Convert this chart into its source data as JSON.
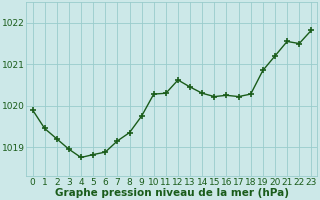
{
  "hours": [
    0,
    1,
    2,
    3,
    4,
    5,
    6,
    7,
    8,
    9,
    10,
    11,
    12,
    13,
    14,
    15,
    16,
    17,
    18,
    19,
    20,
    21,
    22,
    23
  ],
  "pressure": [
    1019.9,
    1019.45,
    1019.2,
    1018.95,
    1018.75,
    1018.82,
    1018.88,
    1019.15,
    1019.35,
    1019.75,
    1020.28,
    1020.3,
    1020.62,
    1020.45,
    1020.3,
    1020.22,
    1020.25,
    1020.22,
    1020.28,
    1020.85,
    1021.2,
    1021.55,
    1021.5,
    1021.82
  ],
  "line_color": "#1a5c1a",
  "marker": "+",
  "marker_size": 4,
  "marker_lw": 1.2,
  "line_width": 1.0,
  "background_color": "#cce8e8",
  "grid_color": "#99cccc",
  "ylabel_ticks": [
    1019,
    1020,
    1021,
    1022
  ],
  "xlabel": "Graphe pression niveau de la mer (hPa)",
  "ylim_min": 1018.3,
  "ylim_max": 1022.5,
  "xlim_min": -0.5,
  "xlim_max": 23.5,
  "tick_label_color": "#1a5c1a",
  "xlabel_color": "#1a5c1a",
  "xlabel_fontsize": 7.5,
  "tick_fontsize": 6.5,
  "ytick_fontsize": 6.5
}
